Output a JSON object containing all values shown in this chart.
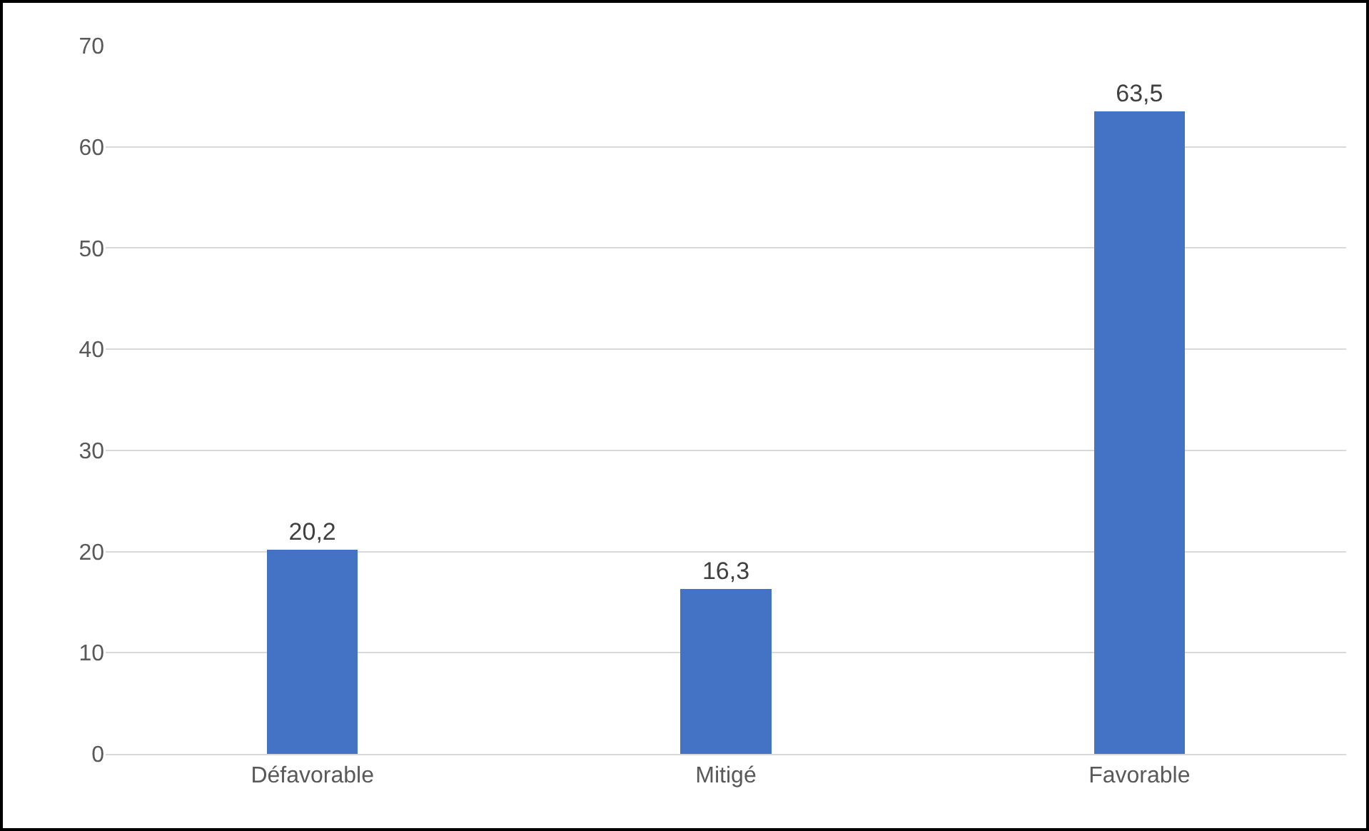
{
  "chart_data": {
    "type": "bar",
    "categories": [
      "Défavorable",
      "Mitigé",
      "Favorable"
    ],
    "values": [
      20.2,
      16.3,
      63.5
    ],
    "value_labels": [
      "20,2",
      "16,3",
      "63,5"
    ],
    "color": "#4472c4",
    "ylim": [
      0,
      70
    ],
    "yticks": [
      0,
      10,
      20,
      30,
      40,
      50,
      60,
      70
    ],
    "grid": "y",
    "legend": false
  }
}
